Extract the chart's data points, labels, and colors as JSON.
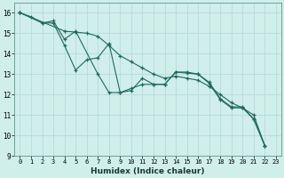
{
  "xlabel": "Humidex (Indice chaleur)",
  "bg_color": "#d0eeea",
  "grid_color": "#b8dcd8",
  "line_color": "#1e6b5e",
  "xlim": [
    -0.5,
    23.5
  ],
  "ylim": [
    9,
    16.5
  ],
  "xticks": [
    0,
    1,
    2,
    3,
    4,
    5,
    6,
    7,
    8,
    9,
    10,
    11,
    12,
    13,
    14,
    15,
    16,
    17,
    18,
    19,
    20,
    21,
    22,
    23
  ],
  "yticks": [
    9,
    10,
    11,
    12,
    13,
    14,
    15,
    16
  ],
  "line1_x": [
    0,
    1,
    2,
    3,
    4,
    5,
    6,
    7,
    8,
    9,
    10,
    11,
    12,
    13,
    14,
    15,
    16,
    17,
    18,
    19,
    20,
    21,
    22
  ],
  "line1_y": [
    16.0,
    15.8,
    15.5,
    15.5,
    14.4,
    13.2,
    13.7,
    13.8,
    14.5,
    12.1,
    12.2,
    12.8,
    12.5,
    12.5,
    13.1,
    13.1,
    13.0,
    12.6,
    11.8,
    11.4,
    11.4,
    10.8,
    9.5
  ],
  "line2_x": [
    0,
    2,
    3,
    4,
    5,
    7,
    8,
    9,
    10,
    11,
    12,
    13,
    14,
    15,
    16,
    17,
    18,
    19,
    20,
    21,
    22
  ],
  "line2_y": [
    16.0,
    15.5,
    15.6,
    14.7,
    15.1,
    13.0,
    12.1,
    12.1,
    12.3,
    12.5,
    12.5,
    12.5,
    13.1,
    13.05,
    13.0,
    12.55,
    11.75,
    11.35,
    11.35,
    10.8,
    9.5
  ],
  "line3_x": [
    0,
    4,
    5,
    6,
    7,
    8,
    9,
    10,
    11,
    12,
    13,
    14,
    15,
    16,
    17,
    18,
    19,
    20,
    21,
    22
  ],
  "line3_y": [
    16.0,
    15.1,
    15.05,
    15.0,
    14.85,
    14.4,
    13.9,
    13.6,
    13.3,
    13.0,
    12.8,
    12.9,
    12.8,
    12.7,
    12.4,
    12.0,
    11.6,
    11.35,
    11.0,
    9.5
  ]
}
